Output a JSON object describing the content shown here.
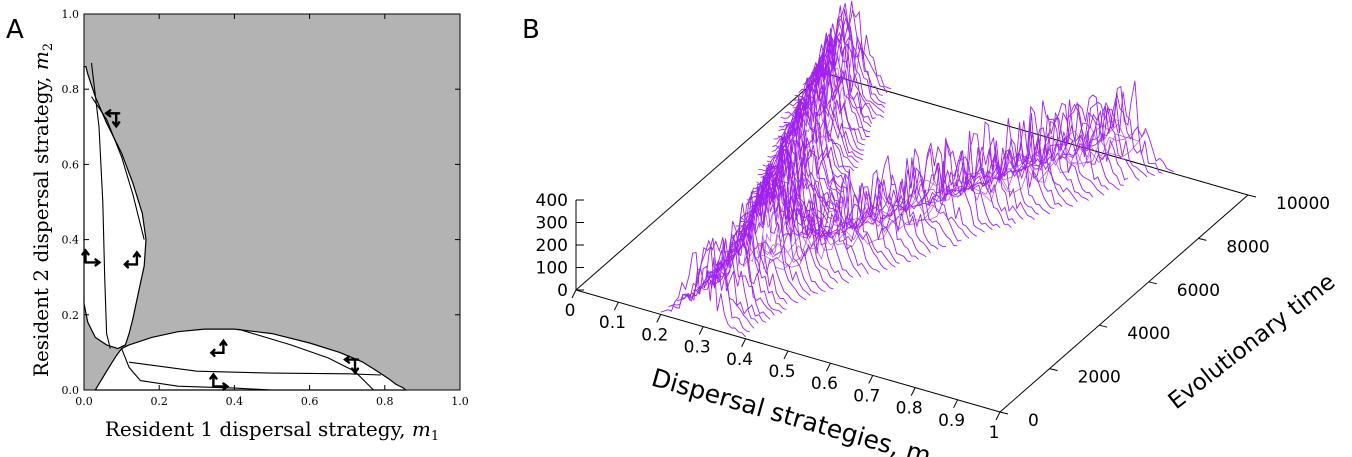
{
  "chart_data": [
    {
      "panel_label": "A",
      "type": "region-plot",
      "xlabel_text": "Resident 1 dispersal strategy, ",
      "xlabel_var": "m",
      "xlabel_sub": "1",
      "ylabel_text": "Resident 2 dispersal strategy, ",
      "ylabel_var": "m",
      "ylabel_sub": "2",
      "xlim": [
        0,
        1
      ],
      "ylim": [
        0,
        1
      ],
      "xticks": [
        "0.0",
        "0.2",
        "0.4",
        "0.6",
        "0.8",
        "1.0"
      ],
      "yticks": [
        "0.0",
        "0.2",
        "0.4",
        "0.6",
        "0.8",
        "1.0"
      ],
      "colors": {
        "invadable": "#b3b3b3",
        "coexistence": "#ffffff",
        "curve": "#000000"
      },
      "coexistence_regions": [
        {
          "name": "upper-left lobe",
          "boundary": [
            [
              0.005,
              0.86
            ],
            [
              0.01,
              0.84
            ],
            [
              0.03,
              0.78
            ],
            [
              0.06,
              0.71
            ],
            [
              0.1,
              0.63
            ],
            [
              0.13,
              0.55
            ],
            [
              0.155,
              0.47
            ],
            [
              0.165,
              0.4
            ],
            [
              0.16,
              0.33
            ],
            [
              0.145,
              0.26
            ],
            [
              0.13,
              0.19
            ],
            [
              0.12,
              0.15
            ],
            [
              0.11,
              0.12
            ],
            [
              0.09,
              0.11
            ],
            [
              0.06,
              0.12
            ],
            [
              0.03,
              0.14
            ],
            [
              0.01,
              0.18
            ],
            [
              0.0,
              0.23
            ],
            [
              0.0,
              0.86
            ]
          ]
        },
        {
          "name": "lower-right lobe",
          "boundary": [
            [
              0.1,
              0.11
            ],
            [
              0.12,
              0.12
            ],
            [
              0.18,
              0.14
            ],
            [
              0.25,
              0.155
            ],
            [
              0.32,
              0.162
            ],
            [
              0.4,
              0.162
            ],
            [
              0.5,
              0.15
            ],
            [
              0.6,
              0.125
            ],
            [
              0.68,
              0.1
            ],
            [
              0.74,
              0.075
            ],
            [
              0.78,
              0.05
            ],
            [
              0.81,
              0.03
            ],
            [
              0.83,
              0.015
            ],
            [
              0.85,
              0.005
            ],
            [
              0.855,
              0.0
            ],
            [
              0.03,
              0.0
            ],
            [
              0.06,
              0.05
            ],
            [
              0.085,
              0.09
            ],
            [
              0.1,
              0.11
            ]
          ]
        }
      ],
      "interior_curves": [
        [
          [
            0.02,
            0.87
          ],
          [
            0.04,
            0.7
          ],
          [
            0.05,
            0.5
          ],
          [
            0.055,
            0.3
          ],
          [
            0.06,
            0.15
          ],
          [
            0.07,
            0.11
          ]
        ],
        [
          [
            0.02,
            0.78
          ],
          [
            0.06,
            0.72
          ],
          [
            0.1,
            0.62
          ],
          [
            0.13,
            0.52
          ],
          [
            0.16,
            0.4
          ]
        ],
        [
          [
            0.12,
            0.074
          ],
          [
            0.3,
            0.05
          ],
          [
            0.5,
            0.045
          ],
          [
            0.7,
            0.043
          ],
          [
            0.79,
            0.04
          ]
        ],
        [
          [
            0.41,
            0.162
          ],
          [
            0.55,
            0.12
          ],
          [
            0.65,
            0.085
          ],
          [
            0.72,
            0.05
          ],
          [
            0.77,
            0.0
          ]
        ],
        [
          [
            0.1,
            0.11
          ],
          [
            0.12,
            0.06
          ],
          [
            0.15,
            0.025
          ],
          [
            0.25,
            0.01
          ],
          [
            0.4,
            0.005
          ],
          [
            0.5,
            0.0
          ]
        ]
      ],
      "arrows": [
        {
          "at": [
            0.075,
            0.72
          ],
          "type": "dh"
        },
        {
          "at": [
            0.02,
            0.35
          ],
          "type": "ur"
        },
        {
          "at": [
            0.13,
            0.35
          ],
          "type": "ru"
        },
        {
          "at": [
            0.36,
            0.115
          ],
          "type": "ru"
        },
        {
          "at": [
            0.36,
            0.02
          ],
          "type": "ur"
        },
        {
          "at": [
            0.71,
            0.065
          ],
          "type": "dh"
        }
      ]
    },
    {
      "panel_label": "B",
      "type": "surface3d",
      "xlabel": "Dispersal strategies, m",
      "ylabel": "Evolutionary time",
      "xticks": [
        "0",
        "0.1",
        "0.2",
        "0.3",
        "0.4",
        "0.5",
        "0.6",
        "0.7",
        "0.8",
        "0.9",
        "1"
      ],
      "yticks": [
        "0",
        "2000",
        "4000",
        "6000",
        "8000",
        "10000"
      ],
      "zticks": [
        "0",
        "100",
        "200",
        "300",
        "400"
      ],
      "xlim": [
        0,
        1
      ],
      "ylim": [
        0,
        10000
      ],
      "zlim": [
        0,
        400
      ],
      "line_color": "#a020f0",
      "time_slices": 60,
      "branches": [
        {
          "name": "initial",
          "t_start": 0,
          "t_end": 1800,
          "m_start": 0.3,
          "m_end": 0.32
        },
        {
          "name": "low-dispersal branch",
          "t_start": 1800,
          "t_end": 10000,
          "m_start": 0.32,
          "m_end": 0.06
        },
        {
          "name": "high-dispersal branch",
          "t_start": 1800,
          "t_end": 10000,
          "m_start": 0.32,
          "m_end": 0.72
        }
      ],
      "peak_range": [
        120,
        400
      ]
    }
  ]
}
